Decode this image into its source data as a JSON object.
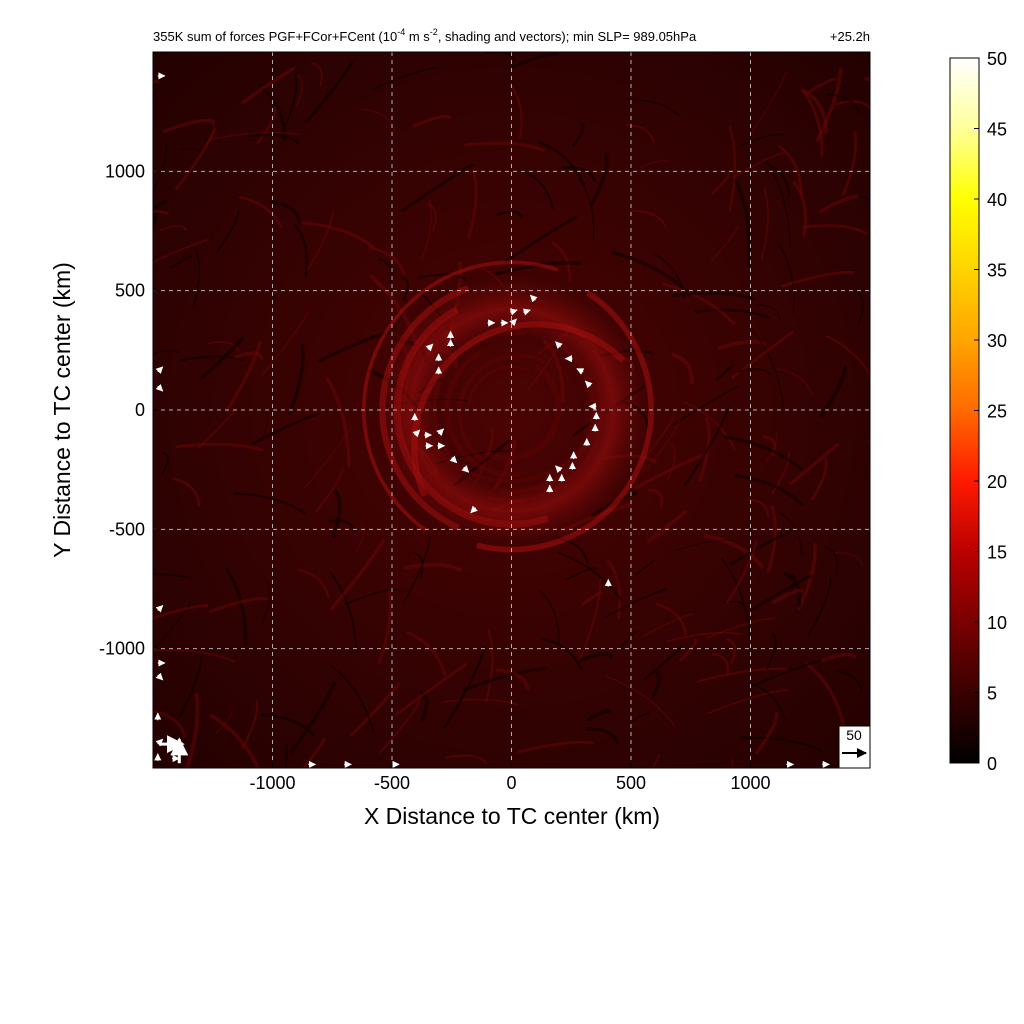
{
  "title": "355K sum of forces PGF+FCor+FCent (10",
  "title_exp1": "-4",
  "title_mid": " m s",
  "title_exp2": "-2",
  "title_tail": ", shading and vectors); min SLP= 989.05hPa",
  "time_label": "+25.2h",
  "chart_data": {
    "type": "heatmap",
    "x_label": "X Distance to TC center (km)",
    "y_label": "Y Distance to TC center (km)",
    "xlim": [
      -1500,
      1500
    ],
    "ylim": [
      -1500,
      1500
    ],
    "x_ticks": [
      -1000,
      -500,
      0,
      500,
      1000
    ],
    "y_ticks": [
      -1000,
      -500,
      0,
      500,
      1000
    ],
    "x_tick_labels": [
      "-1000",
      "-500",
      "0",
      "500",
      "1000"
    ],
    "y_tick_labels": [
      "-1000",
      "-500",
      "0",
      "500",
      "1000"
    ],
    "grid": true,
    "colorbar": {
      "min": 0,
      "max": 50,
      "ticks": [
        "0",
        "5",
        "10",
        "15",
        "20",
        "25",
        "30",
        "35",
        "40",
        "45",
        "50"
      ],
      "colors": [
        "#000000",
        "#3a0000",
        "#7a0000",
        "#bb0000",
        "#ff1a00",
        "#ff6a00",
        "#ffa500",
        "#ffd400",
        "#ffff00",
        "#ffff9a",
        "#ffffff"
      ]
    },
    "reference_vector": {
      "label": "50"
    },
    "ring_radius_km": 360,
    "vectors": [
      {
        "x": 100,
        "y": 460,
        "u": -1,
        "v": 1
      },
      {
        "x": 50,
        "y": 410,
        "u": 1,
        "v": 0.3
      },
      {
        "x": -5,
        "y": 410,
        "u": 1,
        "v": 0.3
      },
      {
        "x": -45,
        "y": 365,
        "u": 1,
        "v": 0
      },
      {
        "x": -100,
        "y": 365,
        "u": 1,
        "v": 0
      },
      {
        "x": 0,
        "y": 360,
        "u": 1,
        "v": 1
      },
      {
        "x": -255,
        "y": 300,
        "u": 0,
        "v": 1
      },
      {
        "x": -255,
        "y": 265,
        "u": 0,
        "v": 1
      },
      {
        "x": -350,
        "y": 255,
        "u": 1,
        "v": 1
      },
      {
        "x": -305,
        "y": 205,
        "u": 0,
        "v": 1
      },
      {
        "x": -305,
        "y": 150,
        "u": 0,
        "v": 1
      },
      {
        "x": 205,
        "y": 265,
        "u": -1,
        "v": 1
      },
      {
        "x": 255,
        "y": 215,
        "u": -1,
        "v": 0
      },
      {
        "x": 300,
        "y": 160,
        "u": -1,
        "v": 0.5
      },
      {
        "x": 330,
        "y": 100,
        "u": -1,
        "v": 1
      },
      {
        "x": 355,
        "y": 15,
        "u": -1,
        "v": 0
      },
      {
        "x": 355,
        "y": -40,
        "u": 0,
        "v": 1
      },
      {
        "x": 350,
        "y": -90,
        "u": 0,
        "v": 1
      },
      {
        "x": 315,
        "y": -150,
        "u": 0,
        "v": 1
      },
      {
        "x": 260,
        "y": -205,
        "u": 0,
        "v": 1
      },
      {
        "x": 255,
        "y": -250,
        "u": 0,
        "v": 1
      },
      {
        "x": 205,
        "y": -255,
        "u": -1,
        "v": 1
      },
      {
        "x": 210,
        "y": -300,
        "u": 0,
        "v": 1
      },
      {
        "x": 160,
        "y": -300,
        "u": 0,
        "v": 1
      },
      {
        "x": 160,
        "y": -345,
        "u": 0,
        "v": 1
      },
      {
        "x": -405,
        "y": -45,
        "u": 0,
        "v": 1
      },
      {
        "x": -405,
        "y": -105,
        "u": 1,
        "v": 1
      },
      {
        "x": -365,
        "y": -105,
        "u": 1,
        "v": 0
      },
      {
        "x": -360,
        "y": -150,
        "u": 1,
        "v": 0
      },
      {
        "x": -305,
        "y": -100,
        "u": 1,
        "v": 1
      },
      {
        "x": -310,
        "y": -150,
        "u": 1,
        "v": 0
      },
      {
        "x": -250,
        "y": -200,
        "u": 1,
        "v": -1
      },
      {
        "x": -200,
        "y": -240,
        "u": 1,
        "v": -1
      },
      {
        "x": -150,
        "y": -410,
        "u": -1,
        "v": -1
      },
      {
        "x": 405,
        "y": -740,
        "u": 0,
        "v": 1
      },
      {
        "x": -1480,
        "y": 1400,
        "u": 1,
        "v": 0
      },
      {
        "x": -1480,
        "y": 160,
        "u": 1,
        "v": 1
      },
      {
        "x": -1480,
        "y": 100,
        "u": 1,
        "v": -1
      },
      {
        "x": -1480,
        "y": -840,
        "u": 1,
        "v": 1
      },
      {
        "x": -1480,
        "y": -1060,
        "u": 1,
        "v": 0
      },
      {
        "x": -1480,
        "y": -1110,
        "u": 1,
        "v": -1
      },
      {
        "x": -1480,
        "y": -1300,
        "u": 0,
        "v": 1
      },
      {
        "x": -1480,
        "y": -1400,
        "u": 1,
        "v": 1
      },
      {
        "x": -1480,
        "y": -1470,
        "u": 0,
        "v": 1
      },
      {
        "x": -850,
        "y": -1485,
        "u": 1,
        "v": 0
      },
      {
        "x": -700,
        "y": -1485,
        "u": 1,
        "v": 0
      },
      {
        "x": -500,
        "y": -1485,
        "u": 1,
        "v": 0
      },
      {
        "x": 1150,
        "y": -1485,
        "u": 1,
        "v": 0
      },
      {
        "x": 1300,
        "y": -1485,
        "u": 1,
        "v": 0
      },
      {
        "x": -1420,
        "y": -1460,
        "u": 1,
        "v": 0
      }
    ],
    "large_vectors": [
      {
        "x": -1475,
        "y": -1400,
        "u": 1,
        "v": 0
      },
      {
        "x": -1390,
        "y": -1480,
        "u": 0,
        "v": 1
      }
    ]
  }
}
